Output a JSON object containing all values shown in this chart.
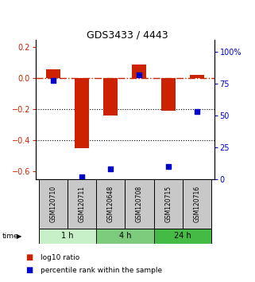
{
  "title": "GDS3433 / 4443",
  "samples": [
    "GSM120710",
    "GSM120711",
    "GSM120648",
    "GSM120708",
    "GSM120715",
    "GSM120716"
  ],
  "log10_ratio": [
    0.06,
    -0.45,
    -0.24,
    0.09,
    -0.21,
    0.02
  ],
  "percentile_rank": [
    78,
    2,
    8,
    82,
    10,
    53
  ],
  "groups": [
    {
      "label": "1 h",
      "indices": [
        0,
        1
      ],
      "color": "#c8f0c8"
    },
    {
      "label": "4 h",
      "indices": [
        2,
        3
      ],
      "color": "#7dcc7d"
    },
    {
      "label": "24 h",
      "indices": [
        4,
        5
      ],
      "color": "#44bb44"
    }
  ],
  "bar_color_red": "#cc2200",
  "bar_color_blue": "#0000cc",
  "ylim_left": [
    -0.65,
    0.25
  ],
  "ylim_right": [
    0,
    110
  ],
  "yticks_left": [
    0.2,
    0.0,
    -0.2,
    -0.4,
    -0.6
  ],
  "yticks_right": [
    100,
    75,
    50,
    25,
    0
  ],
  "hline_y": 0.0,
  "dotted_lines": [
    -0.2,
    -0.4
  ],
  "bar_width": 0.5,
  "time_label": "time",
  "legend_red": "log10 ratio",
  "legend_blue": "percentile rank within the sample",
  "background_color": "#ffffff",
  "sample_box_color": "#c8c8c8",
  "title_fontsize": 9,
  "tick_fontsize": 7,
  "sample_fontsize": 5.5,
  "group_fontsize": 7,
  "legend_fontsize": 6.5
}
